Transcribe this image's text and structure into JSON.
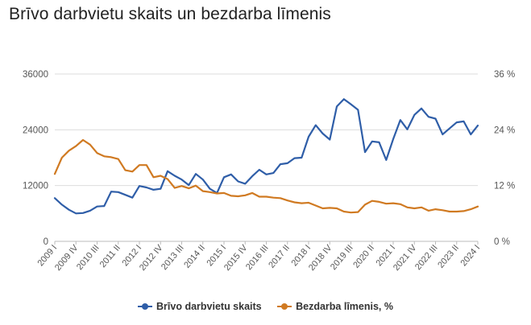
{
  "title": "Brīvo darbvietu skaits un bezdarba līmenis",
  "colors": {
    "series1": "#2f5ea8",
    "series2": "#d07a22",
    "grid": "#dddddd",
    "axis": "#bbbbbb"
  },
  "chart_data": {
    "type": "line",
    "title": "Brīvo darbvietu skaits un bezdarba līmenis",
    "grid": true,
    "legend_position": "bottom",
    "y_left": {
      "ticks": [
        "0",
        "12000",
        "24000",
        "36000"
      ],
      "range": [
        0,
        36000
      ]
    },
    "y_right": {
      "ticks": [
        "0 %",
        "12 %",
        "24 %",
        "36 %"
      ],
      "range": [
        0,
        36
      ]
    },
    "x_tick_labels": [
      "2009 I",
      "2009 IV",
      "2010 III",
      "2011 II",
      "2012 I",
      "2012 IV",
      "2013 III",
      "2014 II",
      "2015 I",
      "2015 IV",
      "2016 III",
      "2017 II",
      "2018 I",
      "2018 IV",
      "2019 III",
      "2020 II",
      "2021 I",
      "2021 IV",
      "2022 III",
      "2023 II",
      "2024 I"
    ],
    "x": [
      "2009 I",
      "2009 II",
      "2009 III",
      "2009 IV",
      "2010 I",
      "2010 II",
      "2010 III",
      "2010 IV",
      "2011 I",
      "2011 II",
      "2011 III",
      "2011 IV",
      "2012 I",
      "2012 II",
      "2012 III",
      "2012 IV",
      "2013 I",
      "2013 II",
      "2013 III",
      "2013 IV",
      "2014 I",
      "2014 II",
      "2014 III",
      "2014 IV",
      "2015 I",
      "2015 II",
      "2015 III",
      "2015 IV",
      "2016 I",
      "2016 II",
      "2016 III",
      "2016 IV",
      "2017 I",
      "2017 II",
      "2017 III",
      "2017 IV",
      "2018 I",
      "2018 II",
      "2018 III",
      "2018 IV",
      "2019 I",
      "2019 II",
      "2019 III",
      "2019 IV",
      "2020 I",
      "2020 II",
      "2020 III",
      "2020 IV",
      "2021 I",
      "2021 II",
      "2021 III",
      "2021 IV",
      "2022 I",
      "2022 II",
      "2022 III",
      "2022 IV",
      "2023 I",
      "2023 II",
      "2023 III",
      "2023 IV",
      "2024 I"
    ],
    "series": [
      {
        "name": "Brīvo darbvietu skaits",
        "axis": "left",
        "values": [
          9300,
          7900,
          6800,
          6000,
          6100,
          6600,
          7500,
          7600,
          10700,
          10600,
          10000,
          9400,
          11900,
          11600,
          11100,
          11300,
          15100,
          14100,
          13300,
          12100,
          14500,
          13300,
          11300,
          10400,
          13800,
          14400,
          12900,
          12400,
          14000,
          15400,
          14400,
          14700,
          16600,
          16800,
          17900,
          18000,
          22500,
          25000,
          23200,
          21900,
          29000,
          30600,
          29500,
          28300,
          19200,
          21500,
          21300,
          17500,
          22000,
          26100,
          24100,
          27200,
          28600,
          26800,
          26400,
          23000,
          24300,
          25600,
          25800,
          23000,
          24900
        ]
      },
      {
        "name": "Bezdarba līmenis, %",
        "axis": "right",
        "values": [
          14.5,
          18.0,
          19.5,
          20.5,
          21.8,
          20.8,
          19.0,
          18.3,
          18.1,
          17.7,
          15.3,
          15.0,
          16.4,
          16.4,
          13.8,
          14.1,
          13.4,
          11.5,
          11.9,
          11.4,
          12.0,
          10.8,
          10.6,
          10.3,
          10.4,
          9.8,
          9.7,
          9.9,
          10.4,
          9.6,
          9.6,
          9.4,
          9.3,
          8.8,
          8.4,
          8.2,
          8.3,
          7.7,
          7.1,
          7.2,
          7.1,
          6.4,
          6.2,
          6.3,
          7.9,
          8.7,
          8.5,
          8.1,
          8.2,
          8.0,
          7.3,
          7.1,
          7.3,
          6.6,
          6.9,
          6.7,
          6.4,
          6.4,
          6.5,
          6.9,
          7.5
        ]
      }
    ]
  }
}
